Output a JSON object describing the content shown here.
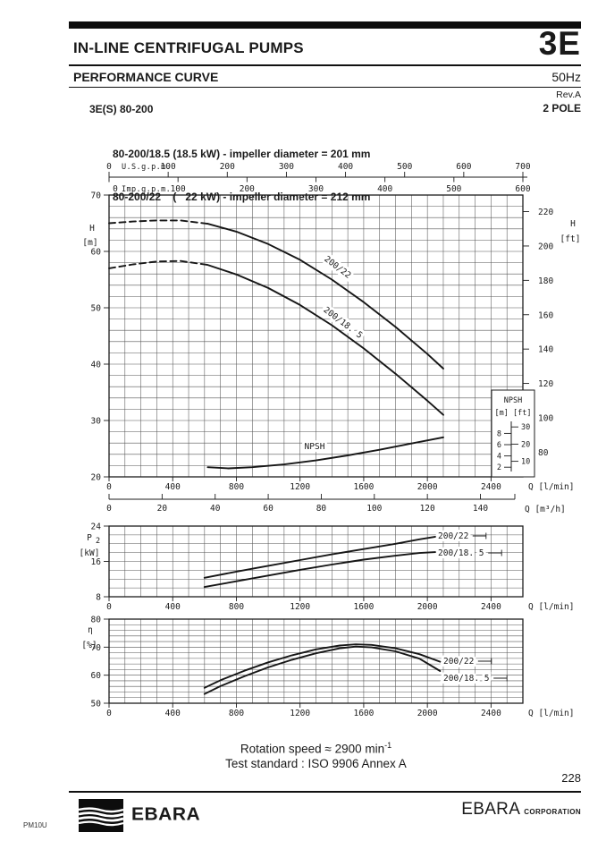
{
  "colors": {
    "ink": "#1a1a1a",
    "paper": "#ffffff"
  },
  "header": {
    "product_line": "IN-LINE CENTRIFUGAL PUMPS",
    "series_code": "3E",
    "doc_type": "PERFORMANCE CURVE",
    "frequency": "50Hz",
    "revision": "Rev.A",
    "model": "3E(S) 80-200",
    "poles": "2 POLE",
    "variants": [
      "80-200/18.5 (18.5 kW) - impeller diameter = 201 mm",
      "80-200/22    (   22 kW) - impeller diameter = 212 mm"
    ]
  },
  "footer": {
    "rotation_speed": "Rotation speed ≈ 2900 min",
    "rotation_sup": "-1",
    "test_standard": "Test standard : ISO 9906 Annex A",
    "page_number": "228",
    "brand_wordmark": "EBARA",
    "corporation_name": "EBARA",
    "corporation_suffix": "CORPORATION",
    "doc_code": "PM10U"
  },
  "chart_data": [
    {
      "id": "head_flow",
      "type": "line",
      "x_unit": "l/min",
      "x_axes_top": [
        {
          "label": "U.S.g.p.m.",
          "ticks": [
            0,
            100,
            200,
            300,
            400,
            500,
            600,
            700
          ]
        },
        {
          "label": "Imp.g.p.m.",
          "ticks": [
            0,
            100,
            200,
            300,
            400,
            500,
            600
          ]
        }
      ],
      "x_axes_bottom": [
        {
          "label": "Q [l/min]",
          "ticks": [
            0,
            400,
            800,
            1200,
            1600,
            2000,
            2400
          ]
        },
        {
          "label": "Q [m³/h]",
          "ticks": [
            0,
            20,
            40,
            60,
            80,
            100,
            120,
            140
          ]
        }
      ],
      "y_axis_left": {
        "label": "H",
        "unit": "[m]",
        "range": [
          20,
          70
        ],
        "ticks": [
          20,
          30,
          40,
          50,
          60,
          70
        ]
      },
      "y_axis_right": {
        "label": "H",
        "unit": "[ft]",
        "ticks": [
          80,
          100,
          120,
          140,
          160,
          180,
          200,
          220
        ]
      },
      "series": [
        {
          "name": "200/22",
          "dashed_until": 620,
          "points": [
            [
              0,
              65.0
            ],
            [
              150,
              65.3
            ],
            [
              300,
              65.5
            ],
            [
              450,
              65.5
            ],
            [
              620,
              64.9
            ],
            [
              800,
              63.5
            ],
            [
              1000,
              61.3
            ],
            [
              1200,
              58.5
            ],
            [
              1400,
              55.0
            ],
            [
              1600,
              51.0
            ],
            [
              1800,
              46.6
            ],
            [
              2000,
              41.8
            ],
            [
              2100,
              39.2
            ]
          ]
        },
        {
          "name": "200/18. 5",
          "dashed_until": 620,
          "points": [
            [
              0,
              57.0
            ],
            [
              150,
              57.7
            ],
            [
              300,
              58.2
            ],
            [
              450,
              58.3
            ],
            [
              620,
              57.6
            ],
            [
              800,
              55.9
            ],
            [
              1000,
              53.5
            ],
            [
              1200,
              50.5
            ],
            [
              1400,
              46.9
            ],
            [
              1600,
              42.8
            ],
            [
              1800,
              38.3
            ],
            [
              2000,
              33.5
            ],
            [
              2100,
              31.0
            ]
          ]
        }
      ],
      "npsh_series": {
        "name": "NPSH",
        "unit": "m",
        "points": [
          [
            620,
            2.0
          ],
          [
            750,
            1.8
          ],
          [
            900,
            2.0
          ],
          [
            1100,
            2.5
          ],
          [
            1300,
            3.2
          ],
          [
            1500,
            4.1
          ],
          [
            1700,
            5.1
          ],
          [
            1900,
            6.2
          ],
          [
            2100,
            7.3
          ]
        ]
      },
      "npsh_inset": {
        "title": "NPSH",
        "units": "[m] [ft]",
        "m_ticks": [
          2,
          4,
          6,
          8
        ],
        "ft_ticks": [
          10,
          20,
          30
        ]
      }
    },
    {
      "id": "power",
      "type": "line",
      "y_axis_left": {
        "label": "P2",
        "unit": "[kW]",
        "range": [
          8,
          24
        ],
        "ticks": [
          8,
          16,
          24
        ]
      },
      "x_axis_bottom": {
        "label": "Q [l/min]",
        "ticks": [
          0,
          400,
          800,
          1200,
          1600,
          2000,
          2400
        ]
      },
      "series": [
        {
          "name": "200/22",
          "points": [
            [
              600,
              12.3
            ],
            [
              800,
              13.7
            ],
            [
              1000,
              15.0
            ],
            [
              1200,
              16.3
            ],
            [
              1400,
              17.6
            ],
            [
              1600,
              18.8
            ],
            [
              1800,
              20.0
            ],
            [
              1950,
              21.0
            ],
            [
              2050,
              21.6
            ]
          ]
        },
        {
          "name": "200/18. 5",
          "points": [
            [
              600,
              10.2
            ],
            [
              800,
              11.5
            ],
            [
              1000,
              12.8
            ],
            [
              1200,
              14.1
            ],
            [
              1400,
              15.3
            ],
            [
              1600,
              16.4
            ],
            [
              1800,
              17.3
            ],
            [
              1950,
              17.9
            ],
            [
              2050,
              18.1
            ]
          ]
        }
      ]
    },
    {
      "id": "efficiency",
      "type": "line",
      "y_axis_left": {
        "label": "η",
        "unit": "[%]",
        "range": [
          50,
          80
        ],
        "ticks": [
          50,
          60,
          70,
          80
        ]
      },
      "x_axis_bottom": {
        "label": "Q [l/min]",
        "ticks": [
          0,
          400,
          800,
          1200,
          1600,
          2000,
          2400
        ]
      },
      "series": [
        {
          "name": "200/22",
          "points": [
            [
              600,
              55.5
            ],
            [
              700,
              58.2
            ],
            [
              850,
              61.6
            ],
            [
              1000,
              64.6
            ],
            [
              1150,
              67.1
            ],
            [
              1300,
              69.2
            ],
            [
              1450,
              70.6
            ],
            [
              1550,
              71.0
            ],
            [
              1650,
              70.8
            ],
            [
              1800,
              69.6
            ],
            [
              1950,
              67.5
            ],
            [
              2080,
              64.8
            ]
          ]
        },
        {
          "name": "200/18. 5",
          "points": [
            [
              600,
              53.3
            ],
            [
              700,
              56.1
            ],
            [
              850,
              59.6
            ],
            [
              1000,
              62.8
            ],
            [
              1150,
              65.5
            ],
            [
              1300,
              67.8
            ],
            [
              1450,
              69.6
            ],
            [
              1550,
              70.2
            ],
            [
              1650,
              69.9
            ],
            [
              1800,
              68.5
            ],
            [
              1950,
              65.9
            ],
            [
              2080,
              61.5
            ]
          ]
        }
      ]
    }
  ]
}
